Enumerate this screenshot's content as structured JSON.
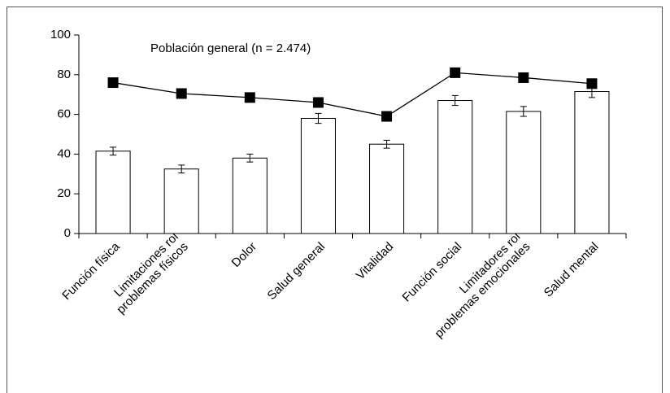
{
  "chart_data": {
    "type": "bar",
    "categories": [
      "Función física",
      "Limitaciones rol\nproblemas físicos",
      "Dolor",
      "Salud general",
      "Vitalidad",
      "Función social",
      "Limitadores rol\nproblemas emocionales",
      "Salud mental"
    ],
    "series": [
      {
        "type": "bar",
        "color": "#ffffff",
        "values": [
          41.5,
          32.5,
          38,
          58,
          45,
          67,
          61.5,
          71.5
        ],
        "errors": [
          2,
          2,
          2,
          2.5,
          2,
          2.5,
          2.5,
          3
        ]
      },
      {
        "type": "line",
        "name": "Población general (n = 2.474)",
        "color": "#000000",
        "values": [
          76,
          70.5,
          68.5,
          66,
          59,
          81,
          78.5,
          75.5
        ]
      }
    ],
    "ylim": [
      0,
      100
    ],
    "yticks": [
      0,
      20,
      40,
      60,
      80,
      100
    ],
    "grid": false
  }
}
